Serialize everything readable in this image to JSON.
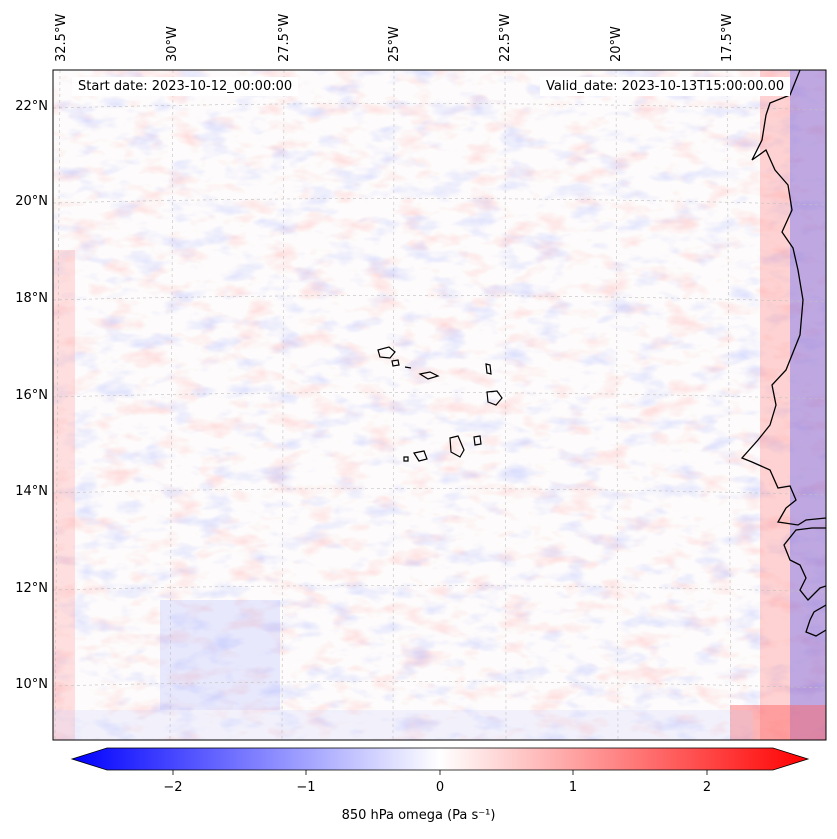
{
  "map": {
    "lon_labels": [
      "32.5°W",
      "30°W",
      "27.5°W",
      "25°W",
      "22.5°W",
      "20°W",
      "17.5°W"
    ],
    "lat_labels": [
      "22°N",
      "20°N",
      "18°N",
      "16°N",
      "14°N",
      "12°N",
      "10°N"
    ],
    "start_date": "Start date: 2023-10-12_00:00:00",
    "valid_date": "Valid_date: 2023-10-13T15:00:00.00",
    "field_colormap": "bwr",
    "gridlines": true,
    "coastlines": true
  },
  "colorbar": {
    "ticks": [
      "−2",
      "−1",
      "0",
      "1",
      "2"
    ],
    "tick_values": [
      -2,
      -1,
      0,
      1,
      2
    ],
    "range": [
      -2.5,
      2.5
    ],
    "extend": "both",
    "label": "850 hPa omega (Pa s⁻¹)",
    "min_color": "#0000ff",
    "mid_color": "#ffffff",
    "max_color": "#ff0000"
  }
}
